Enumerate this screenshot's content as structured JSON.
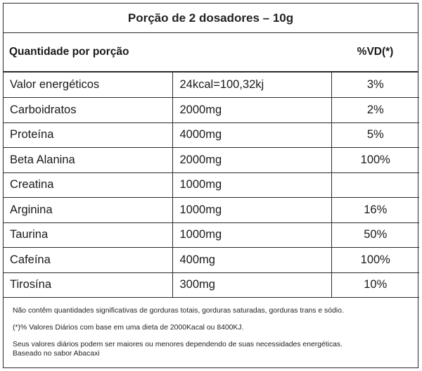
{
  "title": "Porção de 2 dosadores – 10g",
  "header": {
    "left": "Quantidade por porção",
    "right": "%VD(*)"
  },
  "rows": [
    {
      "name": "Valor energéticos",
      "amount": "24kcal=100,32kj",
      "vd": "3%"
    },
    {
      "name": "Carboidratos",
      "amount": "2000mg",
      "vd": "2%"
    },
    {
      "name": "Proteína",
      "amount": "4000mg",
      "vd": "5%"
    },
    {
      "name": "Beta Alanina",
      "amount": "2000mg",
      "vd": "100%"
    },
    {
      "name": "Creatina",
      "amount": "1000mg",
      "vd": ""
    },
    {
      "name": "Arginina",
      "amount": "1000mg",
      "vd": "16%"
    },
    {
      "name": "Taurina",
      "amount": "1000mg",
      "vd": "50%"
    },
    {
      "name": "Cafeína",
      "amount": "400mg",
      "vd": "100%"
    },
    {
      "name": "Tirosína",
      "amount": "300mg",
      "vd": "10%"
    }
  ],
  "footer": {
    "note1": "Não contêm quantidades significativas de gorduras totais, gorduras saturadas, gorduras trans e sódio.",
    "note2": "(*)% Valores Diários com base em uma dieta de 2000Kacal ou 8400KJ.",
    "note3": "Seus valores diários podem ser maiores ou menores dependendo de suas necessidades energéticas.",
    "note4": "Baseado no sabor Abacaxi"
  }
}
